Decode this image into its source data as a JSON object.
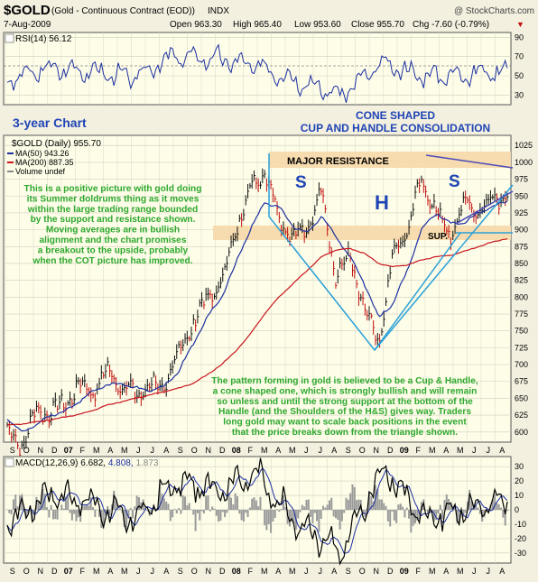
{
  "header": {
    "symbol": "$GOLD",
    "description": "(Gold - Continuous Contract (EOD))",
    "exchange": "INDX",
    "watermark": "@ StockCharts.com",
    "date": "7-Aug-2009",
    "open": "Open 963.30",
    "high": "High 965.40",
    "low": "Low 953.60",
    "close": "Close 955.70",
    "chg": "Chg -7.60 (-0.79%)",
    "chg_arrow": "▼"
  },
  "rsi": {
    "label": "RSI(14) 56.12",
    "ticks": [
      "90",
      "70",
      "50",
      "30"
    ]
  },
  "main": {
    "label": "$GOLD (Daily) 955.70",
    "legend": [
      {
        "text": "MA(50) 943.26",
        "color": "#1c2fa0"
      },
      {
        "text": "MA(200) 887.35",
        "color": "#c8141c"
      },
      {
        "text": "Volume undef",
        "color": "#888888"
      }
    ],
    "price_ticks": [
      "1025",
      "1000",
      "975",
      "950",
      "925",
      "900",
      "875",
      "850",
      "825",
      "800",
      "775",
      "750",
      "725",
      "700",
      "675",
      "650",
      "625",
      "600"
    ]
  },
  "annotations": {
    "three_year": "3-year Chart",
    "cone_title_1": "CONE SHAPED",
    "cone_title_2": "CUP AND HANDLE CONSOLIDATION",
    "major_resistance": "MAJOR RESISTANCE",
    "sup": "SUP.",
    "s_left": "S",
    "h": "H",
    "s_right": "S",
    "commentary_1": [
      "This is a positive picture with gold doing",
      "its Summer doldrums thing as it moves",
      "within the large trading range bounded",
      "by the support and resistance shown.",
      "Moving averages are in bullish",
      "alignment and the chart promises",
      "a breakout to the upside, probably",
      "when the COT picture has improved."
    ],
    "commentary_2": [
      "The pattern forming in gold is believed to be a Cup & Handle,",
      "a cone shaped one, which is strongly bullish and will remain",
      "so unless and until the strong support at the bottom of the",
      "Handle (and the Shoulders of the H&S) gives way. Traders",
      "long gold may want to scale back positions in the event",
      "that the price breaks down from the triangle shown."
    ]
  },
  "months": [
    "S",
    "O",
    "N",
    "D",
    "07",
    "F",
    "M",
    "A",
    "M",
    "J",
    "J",
    "A",
    "S",
    "O",
    "N",
    "D",
    "08",
    "F",
    "M",
    "A",
    "M",
    "J",
    "J",
    "A",
    "S",
    "O",
    "N",
    "D",
    "09",
    "F",
    "M",
    "A",
    "M",
    "J",
    "J",
    "A"
  ],
  "macd": {
    "label_prefix": "MACD(12,26,9)",
    "value1": "6.682,",
    "value2": "4.808,",
    "value3": "1.873",
    "ticks": [
      "30",
      "20",
      "10",
      "0",
      "-10",
      "-20",
      "-30"
    ]
  },
  "colors": {
    "background": "#f3f0e0",
    "panel": "#fdfde8",
    "resistance_band": "#f5d8a8",
    "price_up": "#111111",
    "price_down": "#c01010",
    "ma50": "#1c2fa0",
    "ma200": "#c8141c",
    "cone": "#2aa0d8",
    "annotation_blue": "#1f44b5",
    "annotation_green": "#2ea82e"
  },
  "chart_data": [
    {
      "type": "line",
      "name": "RSI(14)",
      "x": [
        "2006-09",
        "2006-12",
        "2007-03",
        "2007-06",
        "2007-09",
        "2007-12",
        "2008-03",
        "2008-06",
        "2008-09",
        "2008-12",
        "2009-03",
        "2009-06",
        "2009-08"
      ],
      "values": [
        45,
        58,
        55,
        48,
        70,
        68,
        60,
        45,
        30,
        62,
        50,
        52,
        56
      ],
      "ylim": [
        20,
        95
      ]
    },
    {
      "type": "line",
      "title": "$GOLD (Daily) 955.70",
      "x": [
        "2006-09",
        "2006-10",
        "2006-11",
        "2006-12",
        "2007-01",
        "2007-02",
        "2007-03",
        "2007-04",
        "2007-05",
        "2007-06",
        "2007-07",
        "2007-08",
        "2007-09",
        "2007-10",
        "2007-11",
        "2007-12",
        "2008-01",
        "2008-02",
        "2008-03",
        "2008-04",
        "2008-05",
        "2008-06",
        "2008-07",
        "2008-08",
        "2008-09",
        "2008-10",
        "2008-11",
        "2008-12",
        "2009-01",
        "2009-02",
        "2009-03",
        "2009-04",
        "2009-05",
        "2009-06",
        "2009-07",
        "2009-08"
      ],
      "series": [
        {
          "name": "$GOLD",
          "values": [
            600,
            580,
            630,
            630,
            640,
            670,
            660,
            690,
            670,
            655,
            670,
            665,
            720,
            760,
            800,
            820,
            900,
            960,
            990,
            920,
            890,
            900,
            960,
            830,
            860,
            780,
            730,
            860,
            900,
            975,
            930,
            890,
            940,
            930,
            945,
            956
          ]
        },
        {
          "name": "MA(50)",
          "values": [
            620,
            600,
            610,
            625,
            630,
            645,
            660,
            670,
            672,
            665,
            662,
            668,
            690,
            730,
            770,
            800,
            850,
            900,
            940,
            935,
            905,
            895,
            920,
            890,
            860,
            820,
            770,
            790,
            840,
            900,
            925,
            910,
            910,
            925,
            935,
            943
          ]
        },
        {
          "name": "MA(200)",
          "values": [
            610,
            612,
            615,
            618,
            622,
            626,
            632,
            640,
            645,
            650,
            655,
            660,
            665,
            672,
            685,
            700,
            720,
            745,
            775,
            800,
            820,
            840,
            860,
            870,
            872,
            865,
            850,
            845,
            848,
            855,
            860,
            862,
            868,
            875,
            882,
            887
          ]
        }
      ],
      "ylim": [
        590,
        1030
      ]
    },
    {
      "type": "line",
      "title": "MACD(12,26,9)",
      "x": [
        "2006-09",
        "2006-12",
        "2007-03",
        "2007-06",
        "2007-09",
        "2007-12",
        "2008-03",
        "2008-06",
        "2008-09",
        "2008-12",
        "2009-03",
        "2009-06",
        "2009-08"
      ],
      "series": [
        {
          "name": "MACD",
          "values": [
            -10,
            12,
            5,
            -8,
            18,
            15,
            25,
            -12,
            -30,
            28,
            -5,
            0,
            7
          ]
        },
        {
          "name": "Signal",
          "values": [
            -5,
            8,
            4,
            -5,
            12,
            12,
            18,
            -5,
            -20,
            18,
            -2,
            0,
            5
          ]
        }
      ],
      "ylim": [
        -35,
        35
      ]
    }
  ]
}
